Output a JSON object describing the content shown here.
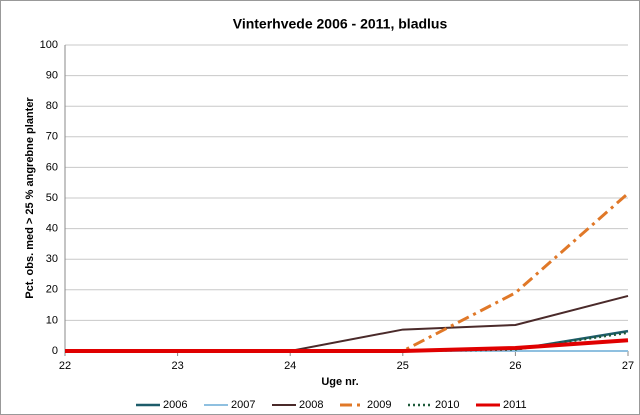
{
  "chart_data": {
    "type": "line",
    "title": "Vinterhvede 2006 - 2011, bladlus",
    "xlabel": "Uge nr.",
    "ylabel": "Pct. obs. med > 25 % angrebne planter",
    "x": [
      22,
      23,
      24,
      25,
      26,
      27
    ],
    "xlim": [
      22,
      27
    ],
    "xticks": [
      22,
      23,
      24,
      25,
      26,
      27
    ],
    "ylim": [
      0,
      100
    ],
    "yticks": [
      0,
      10,
      20,
      30,
      40,
      50,
      60,
      70,
      80,
      90,
      100
    ],
    "grid": true,
    "legend": "bottom",
    "series": [
      {
        "name": "2006",
        "color": "#1d5c6a",
        "dash": "solid",
        "width": 2.5,
        "values": [
          0,
          0,
          0,
          0,
          0.5,
          6.5
        ]
      },
      {
        "name": "2007",
        "color": "#8fc0e0",
        "dash": "solid",
        "width": 2,
        "values": [
          0,
          0,
          0,
          0,
          0,
          0
        ]
      },
      {
        "name": "2008",
        "color": "#4a2a2a",
        "dash": "solid",
        "width": 2,
        "values": [
          0,
          0,
          0,
          7,
          8.5,
          18
        ]
      },
      {
        "name": "2009",
        "color": "#e07828",
        "dash": "dashdot",
        "width": 3,
        "values": [
          0,
          0,
          0,
          0,
          19,
          51.5
        ]
      },
      {
        "name": "2010",
        "color": "#1e5a3a",
        "dash": "dotted",
        "width": 2.5,
        "values": [
          0,
          0,
          0,
          0,
          0.5,
          6
        ]
      },
      {
        "name": "2011",
        "color": "#e00000",
        "dash": "solid",
        "width": 4,
        "values": [
          0,
          0,
          0,
          0,
          1,
          3.5
        ]
      }
    ]
  }
}
